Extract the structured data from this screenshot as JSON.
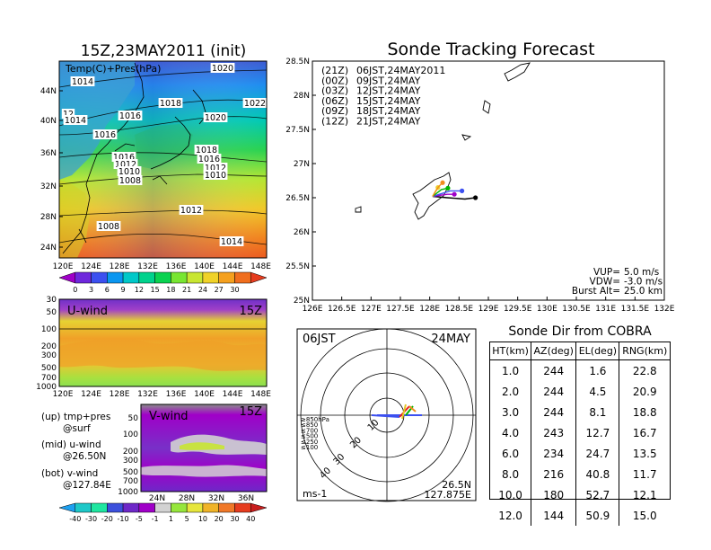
{
  "left_title": "15Z,23MAY2011 (init)",
  "main_title": "Sonde Tracking Forecast",
  "map_panel": {
    "label": "Temp(C)+Pres(hPa)",
    "lat_ticks": [
      "44N",
      "40N",
      "36N",
      "32N",
      "28N",
      "24N"
    ],
    "lon_ticks": [
      "120E",
      "124E",
      "128E",
      "132E",
      "136E",
      "140E",
      "144E",
      "148E"
    ],
    "isobars": [
      {
        "v": "1020",
        "x": 248,
        "y": 77
      },
      {
        "v": "1014",
        "x": 92,
        "y": 92
      },
      {
        "v": "1018",
        "x": 190,
        "y": 116
      },
      {
        "v": "1022",
        "x": 284,
        "y": 116
      },
      {
        "v": "12",
        "x": 76,
        "y": 128
      },
      {
        "v": "1014",
        "x": 84,
        "y": 135
      },
      {
        "v": "1016",
        "x": 145,
        "y": 130
      },
      {
        "v": "1020",
        "x": 240,
        "y": 132
      },
      {
        "v": "1016",
        "x": 117,
        "y": 151
      },
      {
        "v": "1018",
        "x": 230,
        "y": 168
      },
      {
        "v": "1016",
        "x": 138,
        "y": 176
      },
      {
        "v": "1016",
        "x": 233,
        "y": 178
      },
      {
        "v": "1012",
        "x": 140,
        "y": 184
      },
      {
        "v": "1012",
        "x": 240,
        "y": 188
      },
      {
        "v": "1010",
        "x": 144,
        "y": 192
      },
      {
        "v": "1010",
        "x": 240,
        "y": 196
      },
      {
        "v": "1008",
        "x": 145,
        "y": 202
      },
      {
        "v": "1012",
        "x": 213,
        "y": 235
      },
      {
        "v": "1008",
        "x": 121,
        "y": 253
      },
      {
        "v": "1014",
        "x": 258,
        "y": 270
      }
    ],
    "colorbar_labels": [
      "0",
      "3",
      "6",
      "9",
      "12",
      "15",
      "18",
      "21",
      "24",
      "27",
      "30"
    ],
    "colorbar_colors": [
      "#a000c8",
      "#6e28dc",
      "#3c50f0",
      "#0a96f0",
      "#00c8c8",
      "#00d28c",
      "#0ad250",
      "#78e632",
      "#c8e632",
      "#f0d228",
      "#f5a01e",
      "#f06e1e",
      "#e63c1e"
    ]
  },
  "u_panel": {
    "label": "U-wind",
    "time": "15Z",
    "y_ticks": [
      "30",
      "50",
      "100",
      "200",
      "300",
      "500",
      "700",
      "1000"
    ],
    "x_ticks": [
      "120E",
      "124E",
      "128E",
      "132E",
      "136E",
      "140E",
      "144E",
      "148E"
    ]
  },
  "v_panel": {
    "label": "V-wind",
    "time": "15Z",
    "y_ticks": [
      "50",
      "100",
      "200",
      "300",
      "500",
      "700",
      "1000"
    ],
    "x_ticks": [
      "24N",
      "28N",
      "32N",
      "36N"
    ]
  },
  "wind_colorbar": {
    "labels": [
      "-40",
      "-30",
      "-20",
      "-10",
      "-5",
      "-1",
      "1",
      "5",
      "10",
      "20",
      "30",
      "40"
    ],
    "colors": [
      "#1ea0f0",
      "#1ec8c8",
      "#1ee6a0",
      "#3c50dc",
      "#6e28c8",
      "#a000c8",
      "#d2d2d2",
      "#96e63c",
      "#e6e63c",
      "#f0b428",
      "#f07828",
      "#e63c1e",
      "#c81e1e"
    ]
  },
  "legend_text": [
    {
      "a": "(up) tmp+pres",
      "b": "@surf"
    },
    {
      "a": "(mid) u-wind",
      "b": "@26.50N"
    },
    {
      "a": "(bot) v-wind",
      "b": "@127.84E"
    }
  ],
  "track_panel": {
    "lat_ticks": [
      "28.5N",
      "28N",
      "27.5N",
      "27N",
      "26.5N",
      "26N",
      "25.5N",
      "25N"
    ],
    "lon_ticks": [
      "126E",
      "126.5E",
      "127E",
      "127.5E",
      "128E",
      "128.5E",
      "129E",
      "129.5E",
      "130E",
      "130.5E",
      "131E",
      "131.5E",
      "132E"
    ],
    "legend": [
      {
        "code": "(21Z)",
        "text": "06JST,24MAY2011",
        "color": "#000000"
      },
      {
        "code": "(00Z)",
        "text": "09JST,24MAY",
        "color": "#a000c8"
      },
      {
        "code": "(03Z)",
        "text": "12JST,24MAY",
        "color": "#3c50f0"
      },
      {
        "code": "(06Z)",
        "text": "15JST,24MAY",
        "color": "#00b400"
      },
      {
        "code": "(09Z)",
        "text": "18JST,24MAY",
        "color": "#f0d228"
      },
      {
        "code": "(12Z)",
        "text": "21JST,24MAY",
        "color": "#f08c1e"
      }
    ],
    "info": [
      {
        "k": "VUP=",
        "v": "5.0 m/s"
      },
      {
        "k": "VDW=",
        "v": "-3.0 m/s"
      },
      {
        "k": "Burst Alt=",
        "v": "25.0 km"
      }
    ]
  },
  "polar": {
    "left_label": "06JST",
    "right_label": "24MAY",
    "rings": [
      "10",
      "20",
      "30",
      "40"
    ],
    "levels": [
      {
        "t": "≥850hPa",
        "c": "#e61e1e"
      },
      {
        "t": "≤850",
        "c": "#f08c1e"
      },
      {
        "t": "≤700",
        "c": "#e6c828"
      },
      {
        "t": "≤500",
        "c": "#00b400"
      },
      {
        "t": "≤250",
        "c": "#1eb4e6"
      },
      {
        "t": "≤100",
        "c": "#3c50f0"
      }
    ],
    "unit": "ms-1",
    "lat": "26.5N",
    "lon": "127.875E"
  },
  "sonde_dir": {
    "title": "Sonde Dir from COBRA",
    "headers": [
      "HT(km)",
      "AZ(deg)",
      "EL(deg)",
      "RNG(km)"
    ],
    "rows": [
      [
        "1.0",
        "244",
        "1.6",
        "22.8"
      ],
      [
        "2.0",
        "244",
        "4.5",
        "20.9"
      ],
      [
        "3.0",
        "244",
        "8.1",
        "18.8"
      ],
      [
        "4.0",
        "243",
        "12.7",
        "16.7"
      ],
      [
        "6.0",
        "234",
        "24.7",
        "13.5"
      ],
      [
        "8.0",
        "216",
        "40.8",
        "11.7"
      ],
      [
        "10.0",
        "180",
        "52.7",
        "12.1"
      ],
      [
        "12.0",
        "144",
        "50.9",
        "15.0"
      ]
    ]
  },
  "chart_data": [
    {
      "type": "line",
      "title": "Sonde Tracking Forecast",
      "xlim": [
        126,
        132
      ],
      "ylim": [
        25,
        28.5
      ],
      "series": [
        {
          "name": "(21Z) 06JST,24MAY2011",
          "color": "#000000",
          "points": [
            [
              128.05,
              26.52
            ],
            [
              128.3,
              26.5
            ],
            [
              128.6,
              26.48
            ],
            [
              128.78,
              26.5
            ]
          ]
        },
        {
          "name": "(00Z) 09JST,24MAY",
          "color": "#a000c8",
          "points": [
            [
              128.05,
              26.52
            ],
            [
              128.3,
              26.55
            ],
            [
              128.42,
              26.55
            ]
          ]
        },
        {
          "name": "(03Z) 12JST,24MAY",
          "color": "#3c50f0",
          "points": [
            [
              128.05,
              26.52
            ],
            [
              128.35,
              26.6
            ],
            [
              128.55,
              26.6
            ]
          ]
        },
        {
          "name": "(06Z) 15JST,24MAY",
          "color": "#00b400",
          "points": [
            [
              128.05,
              26.52
            ],
            [
              128.2,
              26.62
            ],
            [
              128.31,
              26.64
            ]
          ]
        },
        {
          "name": "(09Z) 18JST,24MAY",
          "color": "#f0d228",
          "points": [
            [
              128.05,
              26.52
            ],
            [
              128.1,
              26.6
            ],
            [
              128.14,
              26.65
            ]
          ]
        },
        {
          "name": "(12Z) 21JST,24MAY",
          "color": "#f08c1e",
          "points": [
            [
              128.05,
              26.52
            ],
            [
              128.15,
              26.66
            ],
            [
              128.22,
              26.72
            ]
          ]
        }
      ]
    },
    {
      "type": "table",
      "title": "Sonde Dir from COBRA",
      "columns": [
        "HT(km)",
        "AZ(deg)",
        "EL(deg)",
        "RNG(km)"
      ],
      "rows": [
        [
          1.0,
          244,
          1.6,
          22.8
        ],
        [
          2.0,
          244,
          4.5,
          20.9
        ],
        [
          3.0,
          244,
          8.1,
          18.8
        ],
        [
          4.0,
          243,
          12.7,
          16.7
        ],
        [
          6.0,
          234,
          24.7,
          13.5
        ],
        [
          8.0,
          216,
          40.8,
          11.7
        ],
        [
          10.0,
          180,
          52.7,
          12.1
        ],
        [
          12.0,
          144,
          50.9,
          15.0
        ]
      ]
    }
  ]
}
